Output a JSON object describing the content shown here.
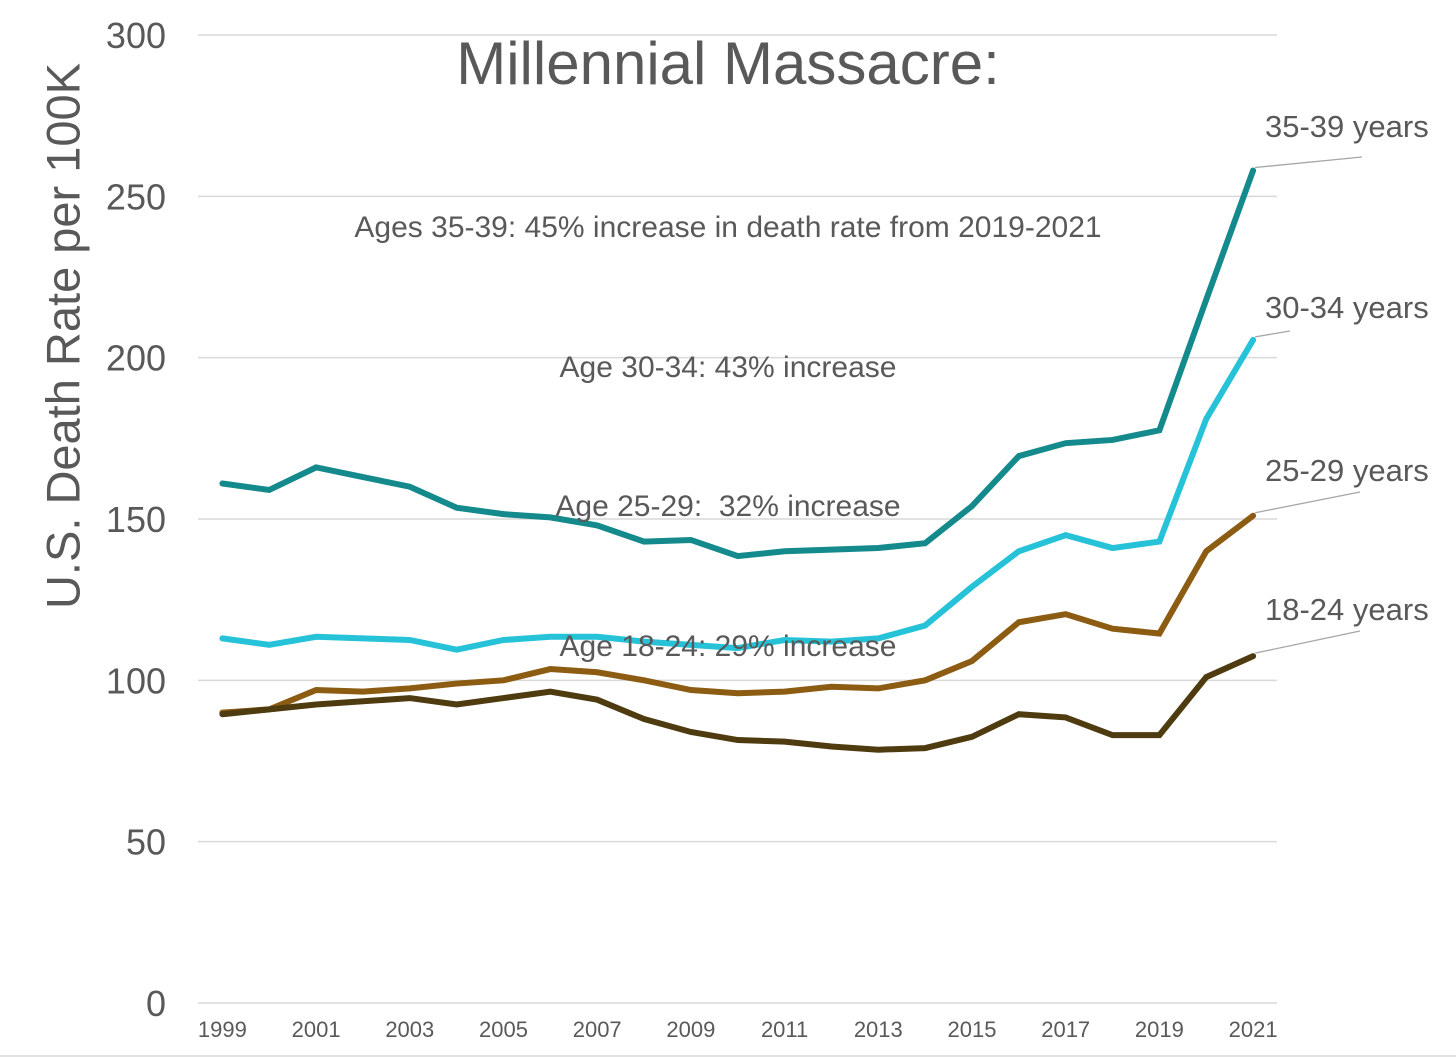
{
  "chart": {
    "title": "Millennial Massacre:",
    "subtitle_lines": [
      "Ages 35-39: 45% increase in death rate from 2019-2021",
      "Age 30-34: 43% increase",
      "Age 25-29:  32% increase",
      "Age 18-24: 29% increase"
    ],
    "y_axis_title": "U.S. Death Rate per 100K"
  },
  "chart_data": {
    "type": "line",
    "title": "Millennial Massacre:",
    "annotations": [
      "Ages 35-39: 45% increase in death rate from 2019-2021",
      "Age 30-34: 43% increase",
      "Age 25-29:  32% increase",
      "Age 18-24: 29% increase"
    ],
    "xlabel": "",
    "ylabel": "U.S. Death Rate per 100K",
    "ylim": [
      0,
      300
    ],
    "ytick_step": 50,
    "ytick_labels": [
      "0",
      "50",
      "100",
      "150",
      "200",
      "250",
      "300"
    ],
    "grid": "horizontal",
    "legend_position": "right-end-labels",
    "x": [
      1999,
      2000,
      2001,
      2002,
      2003,
      2004,
      2005,
      2006,
      2007,
      2008,
      2009,
      2010,
      2011,
      2012,
      2013,
      2014,
      2015,
      2016,
      2017,
      2018,
      2019,
      2020,
      2021
    ],
    "x_tick_labels": [
      "1999",
      "2001",
      "2003",
      "2005",
      "2007",
      "2009",
      "2011",
      "2013",
      "2015",
      "2017",
      "2019",
      "2021"
    ],
    "series": [
      {
        "name": "35-39 years",
        "color": "#148A8D",
        "values": [
          161,
          159,
          166,
          163,
          160,
          153.5,
          151.5,
          150.5,
          148,
          143,
          143.5,
          138.5,
          140,
          140.5,
          141,
          142.5,
          154,
          169.5,
          173.5,
          174.5,
          177.5,
          218,
          258
        ]
      },
      {
        "name": "30-34 years",
        "color": "#25C2D8",
        "values": [
          113,
          111,
          113.5,
          113,
          112.5,
          109.5,
          112.5,
          113.5,
          113.5,
          112,
          111,
          110,
          112.5,
          112,
          113,
          117,
          129,
          140,
          145,
          141,
          143,
          181,
          205.5
        ]
      },
      {
        "name": "25-29 years",
        "color": "#8C5C12",
        "values": [
          90,
          91,
          97,
          96.5,
          97.5,
          99,
          100,
          103.5,
          102.5,
          100,
          97,
          96,
          96.5,
          98,
          97.5,
          100,
          106,
          118,
          120.5,
          116,
          114.5,
          140,
          151
        ]
      },
      {
        "name": "18-24 years",
        "color": "#4F3B10",
        "values": [
          89.5,
          91,
          92.5,
          93.5,
          94.5,
          92.5,
          94.5,
          96.5,
          94,
          88,
          84,
          81.5,
          81,
          79.5,
          78.5,
          79,
          82.5,
          89.5,
          88.5,
          83,
          83,
          101,
          107.5
        ]
      }
    ],
    "colors": {
      "text": "#595959",
      "gridline": "#D9D9D9",
      "leader_line": "#A6A6A6",
      "background": "#FFFFFF"
    }
  }
}
